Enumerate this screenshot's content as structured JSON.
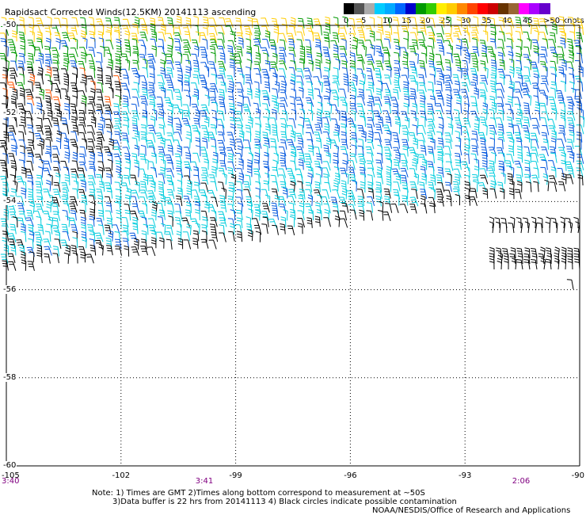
{
  "title": "Rapidsact Corrected Winds(12.5KM) 20141113 ascending",
  "color_scale": {
    "colors": [
      "#000000",
      "#555555",
      "#aaaaaa",
      "#00ccff",
      "#00aaff",
      "#0066ff",
      "#0000cc",
      "#009900",
      "#33cc00",
      "#ffee00",
      "#ffcc00",
      "#ff8800",
      "#ff4400",
      "#ff0000",
      "#cc0000",
      "#663300",
      "#996633",
      "#ff00ff",
      "#aa00ff",
      "#6600cc"
    ],
    "ticks": [
      "0",
      "5",
      "10",
      "15",
      "20",
      "25",
      "30",
      "35",
      "40",
      "45",
      ">50 knots"
    ]
  },
  "lat_labels": [
    "-50",
    "-52",
    "-54",
    "-56",
    "-58",
    "-60"
  ],
  "lon_labels": [
    "-105",
    "-102",
    "-99",
    "-96",
    "-93",
    "-90"
  ],
  "time_labels": [
    "3:40",
    "3:41",
    "2:06"
  ],
  "notes": {
    "line1": "Note: 1) Times are GMT 2)Times along bottom correspond to measurement at ~50S",
    "line2": "3)Data buffer is 22 hrs from 20141113 4) Black circles indicate possible contamination",
    "line3": "NOAA/NESDIS/Office of Research and Applications"
  },
  "swath": {
    "lon_range": [
      -105,
      -90
    ],
    "lat_range": [
      -60,
      -50
    ],
    "barb_colors": {
      "calm": "#000000",
      "light": "#00ccdd",
      "moderate": "#0055dd",
      "fresh": "#0000bb",
      "strong": "#009900",
      "gale": "#ffcc00",
      "storm": "#ff5500"
    }
  }
}
